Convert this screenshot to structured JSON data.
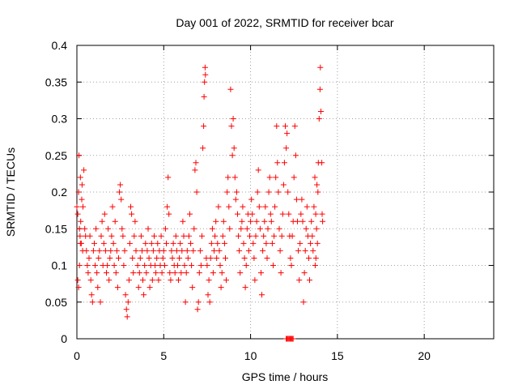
{
  "chart_data": {
    "type": "scatter",
    "title": "Day 001 of 2022, SRMTID for receiver bcar",
    "xlabel": "GPS time / hours",
    "ylabel": "SRMTID / TECUs",
    "xlim": [
      0,
      24
    ],
    "ylim": [
      0,
      0.4
    ],
    "xticks": [
      0,
      5,
      10,
      15,
      20
    ],
    "xtick_labels": [
      "0",
      "5",
      "10",
      "15",
      "20"
    ],
    "yticks": [
      0,
      0.05,
      0.1,
      0.15,
      0.2,
      0.25,
      0.3,
      0.35,
      0.4
    ],
    "ytick_labels": [
      "0",
      "0.05",
      "0.1",
      "0.15",
      "0.2",
      "0.25",
      "0.3",
      "0.35",
      "0.4"
    ],
    "grid": true,
    "marker": "plus",
    "color": "#ff0000",
    "series": [
      {
        "name": "SRMTID",
        "points": [
          [
            0.0,
            0.18
          ],
          [
            0.05,
            0.17
          ],
          [
            0.1,
            0.2
          ],
          [
            0.12,
            0.25
          ],
          [
            0.15,
            0.15
          ],
          [
            0.18,
            0.14
          ],
          [
            0.2,
            0.22
          ],
          [
            0.22,
            0.16
          ],
          [
            0.25,
            0.13
          ],
          [
            0.28,
            0.19
          ],
          [
            0.3,
            0.21
          ],
          [
            0.33,
            0.12
          ],
          [
            0.35,
            0.18
          ],
          [
            0.4,
            0.23
          ],
          [
            0.45,
            0.15
          ],
          [
            0.5,
            0.14
          ],
          [
            0.05,
            0.08
          ],
          [
            0.1,
            0.07
          ],
          [
            0.15,
            0.1
          ],
          [
            0.2,
            0.13
          ],
          [
            0.55,
            0.12
          ],
          [
            0.6,
            0.1
          ],
          [
            0.65,
            0.09
          ],
          [
            0.7,
            0.11
          ],
          [
            0.75,
            0.14
          ],
          [
            0.8,
            0.08
          ],
          [
            0.85,
            0.06
          ],
          [
            0.9,
            0.05
          ],
          [
            0.95,
            0.12
          ],
          [
            1.0,
            0.13
          ],
          [
            1.05,
            0.1
          ],
          [
            1.1,
            0.15
          ],
          [
            1.15,
            0.09
          ],
          [
            1.2,
            0.07
          ],
          [
            1.25,
            0.11
          ],
          [
            1.3,
            0.12
          ],
          [
            1.35,
            0.05
          ],
          [
            1.4,
            0.14
          ],
          [
            1.45,
            0.16
          ],
          [
            1.5,
            0.1
          ],
          [
            1.55,
            0.13
          ],
          [
            1.6,
            0.17
          ],
          [
            1.65,
            0.12
          ],
          [
            1.7,
            0.09
          ],
          [
            1.75,
            0.1
          ],
          [
            1.8,
            0.15
          ],
          [
            1.85,
            0.08
          ],
          [
            1.9,
            0.11
          ],
          [
            1.95,
            0.12
          ],
          [
            2.0,
            0.14
          ],
          [
            2.05,
            0.18
          ],
          [
            2.1,
            0.13
          ],
          [
            2.15,
            0.1
          ],
          [
            2.2,
            0.16
          ],
          [
            2.25,
            0.09
          ],
          [
            2.3,
            0.12
          ],
          [
            2.35,
            0.07
          ],
          [
            2.4,
            0.11
          ],
          [
            2.45,
            0.2
          ],
          [
            2.5,
            0.21
          ],
          [
            2.55,
            0.19
          ],
          [
            2.6,
            0.15
          ],
          [
            2.65,
            0.14
          ],
          [
            2.7,
            0.1
          ],
          [
            2.75,
            0.12
          ],
          [
            2.8,
            0.06
          ],
          [
            2.85,
            0.04
          ],
          [
            2.9,
            0.03
          ],
          [
            2.95,
            0.05
          ],
          [
            3.0,
            0.08
          ],
          [
            3.05,
            0.13
          ],
          [
            3.1,
            0.18
          ],
          [
            3.15,
            0.17
          ],
          [
            3.2,
            0.11
          ],
          [
            3.25,
            0.09
          ],
          [
            3.3,
            0.14
          ],
          [
            3.35,
            0.16
          ],
          [
            3.4,
            0.12
          ],
          [
            3.5,
            0.1
          ],
          [
            3.55,
            0.07
          ],
          [
            3.6,
            0.09
          ],
          [
            3.65,
            0.11
          ],
          [
            3.7,
            0.14
          ],
          [
            3.75,
            0.12
          ],
          [
            3.8,
            0.08
          ],
          [
            3.85,
            0.06
          ],
          [
            3.9,
            0.1
          ],
          [
            3.95,
            0.13
          ],
          [
            4.0,
            0.09
          ],
          [
            4.05,
            0.12
          ],
          [
            4.1,
            0.15
          ],
          [
            4.15,
            0.11
          ],
          [
            4.2,
            0.07
          ],
          [
            4.25,
            0.1
          ],
          [
            4.3,
            0.13
          ],
          [
            4.35,
            0.08
          ],
          [
            4.4,
            0.12
          ],
          [
            4.45,
            0.14
          ],
          [
            4.5,
            0.1
          ],
          [
            4.55,
            0.09
          ],
          [
            4.6,
            0.11
          ],
          [
            4.65,
            0.13
          ],
          [
            4.7,
            0.08
          ],
          [
            4.75,
            0.12
          ],
          [
            4.8,
            0.1
          ],
          [
            4.85,
            0.14
          ],
          [
            4.9,
            0.09
          ],
          [
            4.95,
            0.11
          ],
          [
            5.0,
            0.12
          ],
          [
            5.05,
            0.1
          ],
          [
            5.1,
            0.15
          ],
          [
            5.15,
            0.13
          ],
          [
            5.2,
            0.18
          ],
          [
            5.25,
            0.22
          ],
          [
            5.3,
            0.17
          ],
          [
            5.35,
            0.09
          ],
          [
            5.4,
            0.08
          ],
          [
            5.45,
            0.12
          ],
          [
            5.5,
            0.11
          ],
          [
            5.55,
            0.13
          ],
          [
            5.6,
            0.1
          ],
          [
            5.65,
            0.09
          ],
          [
            5.7,
            0.14
          ],
          [
            5.75,
            0.12
          ],
          [
            5.8,
            0.1
          ],
          [
            5.85,
            0.08
          ],
          [
            5.9,
            0.11
          ],
          [
            5.95,
            0.13
          ],
          [
            6.0,
            0.09
          ],
          [
            6.05,
            0.12
          ],
          [
            6.1,
            0.16
          ],
          [
            6.15,
            0.14
          ],
          [
            6.2,
            0.1
          ],
          [
            6.25,
            0.05
          ],
          [
            6.3,
            0.09
          ],
          [
            6.35,
            0.12
          ],
          [
            6.4,
            0.11
          ],
          [
            6.45,
            0.14
          ],
          [
            6.5,
            0.17
          ],
          [
            6.55,
            0.13
          ],
          [
            6.6,
            0.1
          ],
          [
            6.65,
            0.07
          ],
          [
            6.7,
            0.12
          ],
          [
            6.75,
            0.15
          ],
          [
            6.8,
            0.23
          ],
          [
            6.85,
            0.24
          ],
          [
            6.9,
            0.2
          ],
          [
            6.95,
            0.04
          ],
          [
            7.0,
            0.05
          ],
          [
            7.05,
            0.09
          ],
          [
            7.1,
            0.12
          ],
          [
            7.15,
            0.1
          ],
          [
            7.2,
            0.14
          ],
          [
            7.25,
            0.26
          ],
          [
            7.3,
            0.29
          ],
          [
            7.32,
            0.33
          ],
          [
            7.35,
            0.35
          ],
          [
            7.38,
            0.37
          ],
          [
            7.4,
            0.36
          ],
          [
            7.45,
            0.11
          ],
          [
            7.5,
            0.1
          ],
          [
            7.55,
            0.06
          ],
          [
            7.6,
            0.08
          ],
          [
            7.65,
            0.05
          ],
          [
            7.7,
            0.11
          ],
          [
            7.75,
            0.13
          ],
          [
            7.8,
            0.15
          ],
          [
            7.85,
            0.09
          ],
          [
            7.9,
            0.12
          ],
          [
            7.95,
            0.14
          ],
          [
            8.0,
            0.16
          ],
          [
            8.05,
            0.11
          ],
          [
            8.1,
            0.13
          ],
          [
            8.15,
            0.18
          ],
          [
            8.2,
            0.12
          ],
          [
            8.25,
            0.1
          ],
          [
            8.3,
            0.07
          ],
          [
            8.35,
            0.09
          ],
          [
            8.4,
            0.14
          ],
          [
            8.45,
            0.16
          ],
          [
            8.5,
            0.13
          ],
          [
            8.55,
            0.11
          ],
          [
            8.6,
            0.08
          ],
          [
            8.65,
            0.2
          ],
          [
            8.7,
            0.22
          ],
          [
            8.75,
            0.18
          ],
          [
            8.8,
            0.15
          ],
          [
            8.85,
            0.34
          ],
          [
            8.9,
            0.29
          ],
          [
            8.95,
            0.25
          ],
          [
            9.0,
            0.3
          ],
          [
            9.05,
            0.26
          ],
          [
            9.1,
            0.22
          ],
          [
            9.15,
            0.19
          ],
          [
            9.2,
            0.2
          ],
          [
            9.25,
            0.17
          ],
          [
            9.3,
            0.14
          ],
          [
            9.35,
            0.12
          ],
          [
            9.4,
            0.09
          ],
          [
            9.45,
            0.15
          ],
          [
            9.5,
            0.16
          ],
          [
            9.55,
            0.18
          ],
          [
            9.6,
            0.13
          ],
          [
            9.65,
            0.11
          ],
          [
            9.7,
            0.07
          ],
          [
            9.75,
            0.1
          ],
          [
            9.8,
            0.15
          ],
          [
            9.85,
            0.17
          ],
          [
            9.9,
            0.12
          ],
          [
            9.95,
            0.14
          ],
          [
            10.0,
            0.16
          ],
          [
            10.05,
            0.19
          ],
          [
            10.1,
            0.17
          ],
          [
            10.15,
            0.13
          ],
          [
            10.2,
            0.11
          ],
          [
            10.25,
            0.08
          ],
          [
            10.3,
            0.14
          ],
          [
            10.35,
            0.16
          ],
          [
            10.4,
            0.2
          ],
          [
            10.45,
            0.23
          ],
          [
            10.5,
            0.18
          ],
          [
            10.55,
            0.15
          ],
          [
            10.6,
            0.09
          ],
          [
            10.65,
            0.06
          ],
          [
            10.7,
            0.12
          ],
          [
            10.75,
            0.14
          ],
          [
            10.8,
            0.16
          ],
          [
            10.85,
            0.18
          ],
          [
            10.9,
            0.13
          ],
          [
            10.95,
            0.11
          ],
          [
            11.0,
            0.15
          ],
          [
            11.05,
            0.2
          ],
          [
            11.1,
            0.22
          ],
          [
            11.15,
            0.17
          ],
          [
            11.2,
            0.16
          ],
          [
            11.25,
            0.13
          ],
          [
            11.3,
            0.1
          ],
          [
            11.35,
            0.14
          ],
          [
            11.4,
            0.18
          ],
          [
            11.45,
            0.22
          ],
          [
            11.5,
            0.29
          ],
          [
            11.55,
            0.24
          ],
          [
            11.6,
            0.2
          ],
          [
            11.65,
            0.15
          ],
          [
            11.7,
            0.12
          ],
          [
            11.75,
            0.09
          ],
          [
            11.8,
            0.14
          ],
          [
            11.85,
            0.17
          ],
          [
            11.9,
            0.21
          ],
          [
            11.95,
            0.24
          ],
          [
            12.0,
            0.29
          ],
          [
            12.05,
            0.26
          ],
          [
            12.1,
            0.28
          ],
          [
            12.15,
            0.2
          ],
          [
            12.2,
            0.17
          ],
          [
            12.25,
            0.14
          ],
          [
            12.3,
            0.11
          ],
          [
            12.35,
            0.1
          ],
          [
            12.4,
            0.14
          ],
          [
            12.45,
            0.16
          ],
          [
            12.5,
            0.22
          ],
          [
            12.55,
            0.29
          ],
          [
            12.6,
            0.25
          ],
          [
            12.65,
            0.19
          ],
          [
            12.7,
            0.16
          ],
          [
            12.75,
            0.12
          ],
          [
            12.8,
            0.08
          ],
          [
            12.85,
            0.13
          ],
          [
            12.9,
            0.17
          ],
          [
            12.95,
            0.19
          ],
          [
            13.0,
            0.16
          ],
          [
            13.05,
            0.05
          ],
          [
            13.1,
            0.09
          ],
          [
            13.15,
            0.12
          ],
          [
            13.2,
            0.15
          ],
          [
            13.25,
            0.18
          ],
          [
            13.3,
            0.14
          ],
          [
            13.35,
            0.11
          ],
          [
            13.4,
            0.08
          ],
          [
            13.45,
            0.13
          ],
          [
            13.5,
            0.16
          ],
          [
            13.55,
            0.14
          ],
          [
            13.6,
            0.12
          ],
          [
            13.65,
            0.18
          ],
          [
            13.7,
            0.22
          ],
          [
            13.75,
            0.17
          ],
          [
            13.8,
            0.15
          ],
          [
            13.85,
            0.13
          ],
          [
            13.9,
            0.24
          ],
          [
            13.95,
            0.3
          ],
          [
            14.0,
            0.34
          ],
          [
            14.02,
            0.37
          ],
          [
            14.05,
            0.31
          ],
          [
            14.1,
            0.24
          ],
          [
            14.12,
            0.17
          ],
          [
            14.15,
            0.16
          ],
          [
            13.72,
            0.1
          ],
          [
            13.76,
            0.11
          ],
          [
            13.82,
            0.21
          ],
          [
            13.88,
            0.2
          ],
          [
            12.05,
            0.0
          ],
          [
            12.1,
            0.0
          ],
          [
            12.15,
            0.0
          ],
          [
            12.2,
            0.0
          ],
          [
            12.25,
            0.0
          ],
          [
            12.3,
            0.0
          ],
          [
            12.35,
            0.0
          ],
          [
            12.4,
            0.0
          ],
          [
            12.45,
            0.0
          ]
        ]
      }
    ]
  }
}
